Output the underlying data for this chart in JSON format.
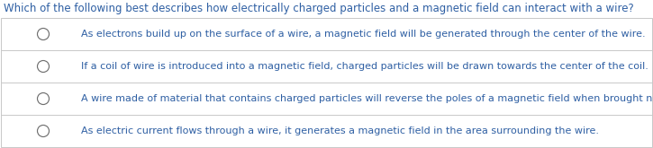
{
  "question": "Which of the following best describes how electrically charged particles and a magnetic field can interact with a wire?",
  "question_color": "#2e5fa3",
  "options": [
    "As electrons build up on the surface of a wire, a magnetic field will be generated through the center of the wire.",
    "If a coil of wire is introduced into a magnetic field, charged particles will be drawn towards the center of the coil.",
    "A wire made of material that contains charged particles will reverse the poles of a magnetic field when brought near.",
    "As electric current flows through a wire, it generates a magnetic field in the area surrounding the wire."
  ],
  "option_color": "#2e5fa3",
  "background_color": "#ffffff",
  "border_color": "#c8c8c8",
  "radio_color": "#707070",
  "font_size": 8.0,
  "question_font_size": 8.5,
  "figsize": [
    7.25,
    1.65
  ],
  "dpi": 100
}
